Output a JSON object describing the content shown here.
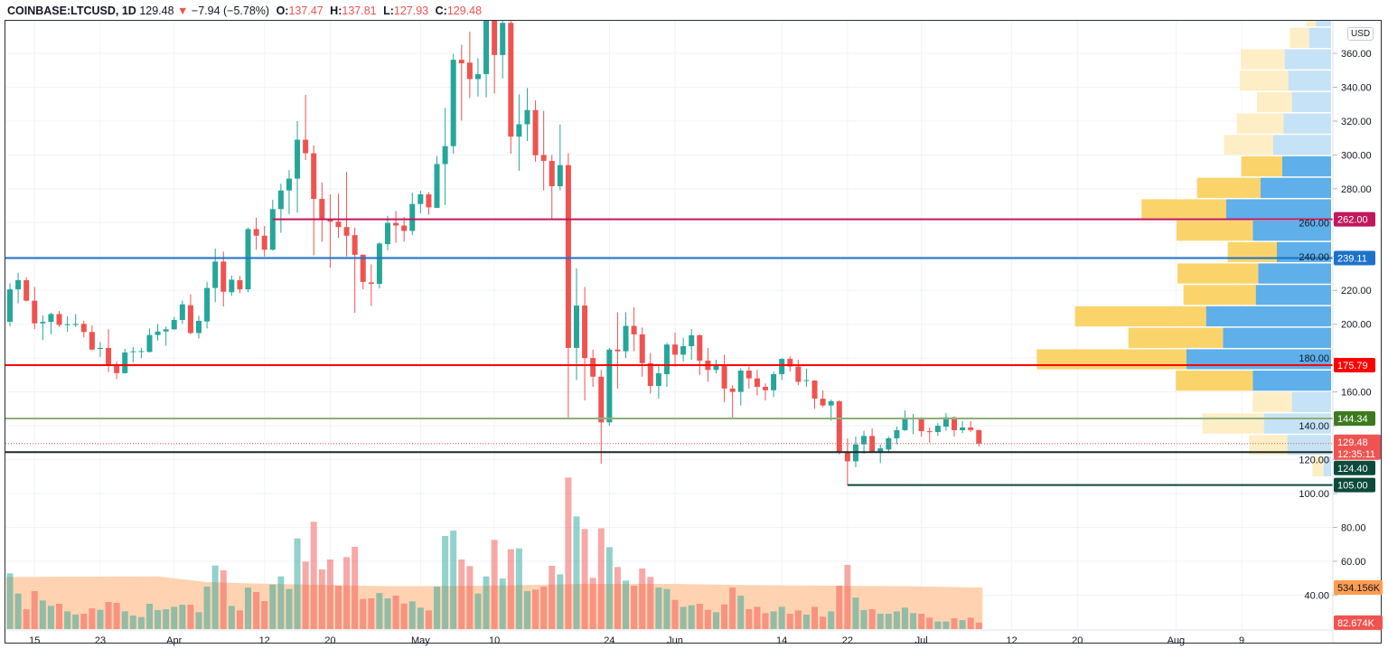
{
  "header": {
    "symbol": "COINBASE:LTCUSD, 1D",
    "last": "129.48",
    "direction_icon": "triangle-down",
    "change": "−7.94 (−5.78%)",
    "open_label": "O:",
    "open": "137.47",
    "high_label": "H:",
    "high": "137.81",
    "low_label": "L:",
    "low": "127.93",
    "close_label": "C:",
    "close": "129.48"
  },
  "currency_badge": "USD",
  "colors": {
    "up": "#26a69a",
    "down": "#ef5350",
    "profile_up": "#5eafea",
    "profile_up_faded": "#c6e2f6",
    "profile_down": "#fad46b",
    "profile_down_faded": "#fdeec6",
    "volume_ma_fill": "#ffcba4"
  },
  "chart_data": {
    "type": "candlestick",
    "title": "",
    "price_axis": {
      "ticks": [
        "360.00",
        "340.00",
        "320.00",
        "300.00",
        "280.00",
        "260.00",
        "240.00",
        "220.00",
        "200.00",
        "180.00",
        "160.00",
        "140.00",
        "120.00",
        "100.00",
        "80.00",
        "60.00",
        "40.00"
      ],
      "ylim": [
        30,
        390
      ]
    },
    "time_axis": {
      "ticks": [
        {
          "label": "15",
          "date": "Mar 15"
        },
        {
          "label": "23",
          "date": "Mar 23"
        },
        {
          "label": "Apr",
          "date": "Apr 1"
        },
        {
          "label": "12",
          "date": "Apr 12"
        },
        {
          "label": "20",
          "date": "Apr 20"
        },
        {
          "label": "May",
          "date": "May 1"
        },
        {
          "label": "10",
          "date": "May 10"
        },
        {
          "label": "24",
          "date": "May 24"
        },
        {
          "label": "Jun",
          "date": "Jun 1"
        },
        {
          "label": "14",
          "date": "Jun 14"
        },
        {
          "label": "22",
          "date": "Jun 22"
        },
        {
          "label": "Jul",
          "date": "Jul 1"
        },
        {
          "label": "12",
          "date": "Jul 12"
        },
        {
          "label": "20",
          "date": "Jul 20"
        },
        {
          "label": "Aug",
          "date": "Aug 1"
        },
        {
          "label": "9",
          "date": "Aug 9"
        }
      ]
    },
    "candle_fields": [
      "date",
      "open",
      "high",
      "low",
      "close",
      "volume_k"
    ],
    "candles": [
      [
        "Mar 12",
        201.4,
        224.2,
        198.7,
        220.6,
        716
      ],
      [
        "Mar 13",
        220.6,
        230.4,
        212.3,
        226,
        457
      ],
      [
        "Mar 14",
        226,
        227.8,
        213.5,
        213.9,
        255
      ],
      [
        "Mar 15",
        213.9,
        222,
        197.1,
        200.5,
        488
      ],
      [
        "Mar 16",
        200.5,
        205.2,
        190.7,
        201.4,
        368
      ],
      [
        "Mar 17",
        201.4,
        206.8,
        194,
        206,
        298
      ],
      [
        "Mar 18",
        206,
        207.8,
        198.4,
        199.6,
        325
      ],
      [
        "Mar 19",
        199.6,
        204.6,
        195.4,
        200,
        228
      ],
      [
        "Mar 20",
        199.6,
        206,
        198.4,
        200.2,
        186
      ],
      [
        "Mar 21",
        200.2,
        202,
        192.2,
        195.4,
        197
      ],
      [
        "Mar 22",
        195.4,
        199.3,
        184.7,
        185,
        267
      ],
      [
        "Mar 23",
        185.4,
        189.5,
        180.6,
        186,
        248
      ],
      [
        "Mar 24",
        186,
        197,
        171.7,
        175.8,
        348
      ],
      [
        "Mar 25",
        175.8,
        178,
        167.6,
        171.1,
        337
      ],
      [
        "Mar 26",
        171.1,
        185.4,
        170.8,
        183.3,
        228
      ],
      [
        "Mar 27",
        183.6,
        186.5,
        177.4,
        184,
        174
      ],
      [
        "Mar 28",
        184,
        186,
        180,
        184.1,
        155
      ],
      [
        "Mar 29",
        183.6,
        197.5,
        183.3,
        193.6,
        325
      ],
      [
        "Mar 30",
        193.6,
        200.2,
        190.4,
        195.7,
        244
      ],
      [
        "Mar 31",
        195.7,
        198.7,
        187.2,
        197,
        255
      ],
      [
        "Apr 1",
        197,
        204.3,
        196.6,
        202.5,
        286
      ],
      [
        "Apr 2",
        202.5,
        214,
        200.2,
        211.7,
        313
      ],
      [
        "Apr 3",
        211.2,
        217.6,
        194,
        194.8,
        313
      ],
      [
        "Apr 4",
        194.8,
        205,
        191.6,
        202,
        217
      ],
      [
        "Apr 5",
        201.6,
        225.1,
        197.5,
        221.4,
        546
      ],
      [
        "Apr 6",
        221.4,
        244.7,
        213,
        237,
        817
      ],
      [
        "Apr 7",
        237,
        242.9,
        210.5,
        219.2,
        755
      ],
      [
        "Apr 8",
        218.9,
        228.7,
        216.7,
        226.3,
        298
      ],
      [
        "Apr 9",
        226,
        228.5,
        218.3,
        220.6,
        240
      ],
      [
        "Apr 10",
        220.6,
        257.1,
        218.9,
        256.2,
        534
      ],
      [
        "Apr 11",
        256.2,
        263,
        244,
        252.3,
        476
      ],
      [
        "Apr 12",
        252.3,
        258,
        240,
        244,
        360
      ],
      [
        "Apr 13",
        244,
        273.5,
        243.5,
        268,
        573
      ],
      [
        "Apr 14",
        268,
        283,
        254,
        279,
        677
      ],
      [
        "Apr 15",
        279,
        291,
        265,
        286,
        515
      ],
      [
        "Apr 16",
        286,
        320,
        266,
        309,
        1165
      ],
      [
        "Apr 17",
        309,
        335.4,
        297,
        301,
        867
      ],
      [
        "Apr 18",
        301,
        305.5,
        240.7,
        274,
        1378
      ],
      [
        "Apr 19",
        274,
        283.8,
        248.7,
        261.5,
        766
      ],
      [
        "Apr 20",
        261.5,
        276.7,
        233.4,
        260.6,
        894
      ],
      [
        "Apr 21",
        260.6,
        277,
        251,
        257.4,
        557
      ],
      [
        "Apr 22",
        257.4,
        290,
        240,
        252.3,
        925
      ],
      [
        "Apr 23",
        252.6,
        257,
        206.7,
        241,
        1057
      ],
      [
        "Apr 24",
        241,
        241.4,
        220.6,
        225,
        387
      ],
      [
        "Apr 25",
        224.7,
        235.4,
        210.8,
        223.8,
        395
      ],
      [
        "Apr 26",
        223.8,
        248.5,
        221.1,
        247.7,
        464
      ],
      [
        "Apr 27",
        247.3,
        264,
        243.7,
        259.8,
        395
      ],
      [
        "Apr 28",
        259.8,
        266.9,
        248.2,
        258.3,
        430
      ],
      [
        "Apr 29",
        258.3,
        263.3,
        248.7,
        255.1,
        329
      ],
      [
        "Apr 30",
        255.1,
        277.6,
        252.6,
        271,
        356
      ],
      [
        "May 1",
        271,
        278.8,
        265.5,
        276.7,
        275
      ],
      [
        "May 2",
        276.7,
        278,
        264.7,
        269,
        240
      ],
      [
        "May 3",
        268.7,
        299.3,
        268.7,
        294.6,
        546
      ],
      [
        "May 4",
        294.6,
        327.8,
        270.4,
        305.2,
        1196
      ],
      [
        "May 5",
        305.2,
        359.8,
        300.7,
        356.2,
        1265
      ],
      [
        "May 6",
        356.2,
        365.1,
        320.3,
        354.1,
        894
      ],
      [
        "May 7",
        354.5,
        372.8,
        333.6,
        344.8,
        809
      ],
      [
        "May 8",
        344.8,
        357.1,
        334.5,
        347.7,
        457
      ],
      [
        "May 9",
        347.7,
        392,
        334,
        385,
        677
      ],
      [
        "May 10",
        385,
        395,
        336.3,
        359,
        1146
      ],
      [
        "May 11",
        359,
        395,
        345.2,
        378,
        650
      ],
      [
        "May 12",
        378,
        390,
        300.7,
        310.8,
        1026
      ],
      [
        "May 13",
        310.8,
        335.8,
        290.6,
        318.1,
        1037
      ],
      [
        "May 14",
        318.1,
        339.5,
        308.2,
        326.5,
        488
      ],
      [
        "May 15",
        326.5,
        332.2,
        295.9,
        299.8,
        507
      ],
      [
        "May 16",
        300,
        326,
        279,
        296.5,
        546
      ],
      [
        "May 17",
        296.5,
        300,
        262,
        281.5,
        813
      ],
      [
        "May 18",
        281.5,
        318,
        279,
        294,
        704
      ],
      [
        "May 19",
        294,
        301,
        145,
        186,
        1947
      ],
      [
        "May 20",
        186,
        233,
        167,
        211,
        1447
      ],
      [
        "May 21",
        211,
        222,
        155,
        180,
        1285
      ],
      [
        "May 22",
        180,
        185,
        163,
        169,
        658
      ],
      [
        "May 23",
        169,
        173,
        117.6,
        142,
        1296
      ],
      [
        "May 24",
        142,
        186,
        140,
        185,
        1053
      ],
      [
        "May 25",
        185,
        207,
        162,
        184,
        797
      ],
      [
        "May 26",
        184,
        207,
        180,
        199,
        623
      ],
      [
        "May 27",
        199,
        210,
        184,
        194,
        557
      ],
      [
        "May 28",
        194,
        198,
        169,
        177,
        778
      ],
      [
        "May 29",
        177,
        183,
        159,
        163.5,
        670
      ],
      [
        "May 30",
        163.5,
        176,
        156,
        171,
        534
      ],
      [
        "May 31",
        170.5,
        189,
        163,
        188,
        515
      ],
      [
        "Jun 1",
        188,
        195,
        175,
        182,
        375
      ],
      [
        "Jun 2",
        182,
        192,
        178,
        187,
        286
      ],
      [
        "Jun 3",
        187,
        197,
        179,
        193.5,
        306
      ],
      [
        "Jun 4",
        193.5,
        194,
        170,
        178.5,
        325
      ],
      [
        "Jun 5",
        178.5,
        186,
        166,
        173,
        248
      ],
      [
        "Jun 6",
        173,
        179,
        171,
        176,
        217
      ],
      [
        "Jun 7",
        176,
        182,
        154,
        162,
        317
      ],
      [
        "Jun 8",
        162,
        164,
        144,
        160,
        534
      ],
      [
        "Jun 9",
        160,
        174,
        152,
        172.6,
        430
      ],
      [
        "Jun 10",
        172.6,
        175,
        162,
        168,
        255
      ],
      [
        "Jun 11",
        168,
        173,
        158,
        163,
        286
      ],
      [
        "Jun 12",
        163,
        165,
        155,
        161,
        205
      ],
      [
        "Jun 13",
        161,
        172,
        157,
        170.5,
        228
      ],
      [
        "Jun 14",
        170.5,
        180,
        167,
        179.5,
        286
      ],
      [
        "Jun 15",
        179.5,
        181,
        172,
        175,
        197
      ],
      [
        "Jun 16",
        175,
        179,
        164,
        166,
        240
      ],
      [
        "Jun 17",
        166.7,
        173.7,
        163,
        167,
        186
      ],
      [
        "Jun 18",
        166.7,
        167,
        150,
        156,
        286
      ],
      [
        "Jun 19",
        156,
        161,
        151,
        152,
        159
      ],
      [
        "Jun 20",
        152,
        155.5,
        143,
        154.5,
        228
      ],
      [
        "Jun 21",
        154.5,
        155,
        123,
        124.5,
        557
      ],
      [
        "Jun 22",
        124.5,
        132.5,
        105,
        119,
        824
      ],
      [
        "Jun 23",
        119,
        133.6,
        115.5,
        129,
        406
      ],
      [
        "Jun 24",
        129,
        137,
        123.5,
        134,
        244
      ],
      [
        "Jun 25",
        134,
        138.5,
        124,
        124.5,
        255
      ],
      [
        "Jun 26",
        124.5,
        129,
        118,
        126.7,
        197
      ],
      [
        "Jun 27",
        126,
        133.6,
        124.5,
        132.6,
        197
      ],
      [
        "Jun 28",
        132.6,
        139.5,
        129,
        137.4,
        228
      ],
      [
        "Jun 29",
        137.4,
        149,
        137,
        143.8,
        275
      ],
      [
        "Jun 30",
        143.8,
        147,
        135,
        144.3,
        205
      ],
      [
        "Jul 1",
        144.3,
        145,
        133.6,
        136.8,
        197
      ],
      [
        "Jul 2",
        136.8,
        139,
        130,
        136.3,
        147
      ],
      [
        "Jul 3",
        136.3,
        141.6,
        134,
        140,
        97
      ],
      [
        "Jul 4",
        139.5,
        147.5,
        137,
        145,
        97
      ],
      [
        "Jul 5",
        145,
        145.5,
        133.6,
        137.4,
        139
      ],
      [
        "Jul 6",
        137.4,
        142.7,
        135.7,
        139,
        116
      ],
      [
        "Jul 7",
        139,
        142.7,
        136.3,
        137.47,
        147
      ],
      [
        "Jul 8",
        137.47,
        137.81,
        127.93,
        129.48,
        82.674
      ]
    ],
    "volume_ma": [
      {
        "date": "Mar 12",
        "value": 670
      },
      {
        "date": "Mar 30",
        "value": 677
      },
      {
        "date": "Apr 5",
        "value": 604
      },
      {
        "date": "Apr 13",
        "value": 580
      },
      {
        "date": "Apr 28",
        "value": 550
      },
      {
        "date": "May 10",
        "value": 557
      },
      {
        "date": "May 20",
        "value": 580
      },
      {
        "date": "Jun 1",
        "value": 580
      },
      {
        "date": "Jun 10",
        "value": 565
      },
      {
        "date": "Jun 30",
        "value": 550
      },
      {
        "date": "Jul 8",
        "value": 534.156
      }
    ],
    "volume_profile": [
      {
        "from": 375.5,
        "to": 388.2,
        "up": 50,
        "down": 32,
        "value_area": false
      },
      {
        "from": 362.8,
        "to": 375.5,
        "up": 73,
        "down": 64,
        "value_area": false
      },
      {
        "from": 350.2,
        "to": 362.8,
        "up": 154,
        "down": 146,
        "value_area": false
      },
      {
        "from": 337.5,
        "to": 350.2,
        "up": 142,
        "down": 161,
        "value_area": false
      },
      {
        "from": 324.9,
        "to": 337.5,
        "up": 130,
        "down": 116,
        "value_area": false
      },
      {
        "from": 312.2,
        "to": 324.9,
        "up": 158,
        "down": 155,
        "value_area": false
      },
      {
        "from": 299.6,
        "to": 312.2,
        "up": 192,
        "down": 163,
        "value_area": false
      },
      {
        "from": 286.9,
        "to": 299.6,
        "up": 162,
        "down": 136,
        "value_area": true
      },
      {
        "from": 274.2,
        "to": 286.9,
        "up": 234,
        "down": 211,
        "value_area": true
      },
      {
        "from": 261.6,
        "to": 274.2,
        "up": 348,
        "down": 281,
        "value_area": true
      },
      {
        "from": 248.9,
        "to": 261.6,
        "up": 260,
        "down": 253,
        "value_area": true
      },
      {
        "from": 236.3,
        "to": 248.9,
        "up": 180,
        "down": 163,
        "value_area": true
      },
      {
        "from": 223.6,
        "to": 236.3,
        "up": 242,
        "down": 268,
        "value_area": true
      },
      {
        "from": 211.0,
        "to": 223.6,
        "up": 250,
        "down": 240,
        "value_area": true
      },
      {
        "from": 198.3,
        "to": 211.0,
        "up": 415,
        "down": 435,
        "value_area": true
      },
      {
        "from": 185.6,
        "to": 198.3,
        "up": 359,
        "down": 314,
        "value_area": true
      },
      {
        "from": 173.0,
        "to": 185.6,
        "up": 480,
        "down": 497,
        "value_area": true
      },
      {
        "from": 160.3,
        "to": 173.0,
        "up": 260,
        "down": 255,
        "value_area": true
      },
      {
        "from": 147.7,
        "to": 160.3,
        "up": 130,
        "down": 130,
        "value_area": false
      },
      {
        "from": 135.0,
        "to": 147.7,
        "up": 223,
        "down": 204,
        "value_area": false
      },
      {
        "from": 122.4,
        "to": 135.0,
        "up": 145,
        "down": 127,
        "value_area": false
      },
      {
        "from": 109.7,
        "to": 122.4,
        "up": 25,
        "down": 37,
        "value_area": false
      }
    ],
    "levels": [
      {
        "price": 262.0,
        "label": "262.00",
        "color": "#c2185b",
        "from": "Apr 13"
      },
      {
        "price": 239.11,
        "label": "239.11",
        "color": "#1e72c8",
        "from": null
      },
      {
        "price": 175.79,
        "label": "175.79",
        "color": "#ff0000",
        "from": null
      },
      {
        "price": 144.34,
        "label": "144.34",
        "color": "#3d7a1e",
        "line_color": "#8fae7a",
        "from": null
      },
      {
        "price": 124.4,
        "label": "124.40",
        "color": "#0c4a3b",
        "line_color": "#1b2a26",
        "from": null
      },
      {
        "price": 105.0,
        "label": "105.00",
        "color": "#0c4a3b",
        "from": "Jun 22"
      }
    ],
    "last_price": {
      "price": 129.48,
      "label": "129.48",
      "countdown": "12:35:11",
      "color": "#ef5350"
    },
    "volume_tags": [
      {
        "value": 534.156,
        "label": "534.156K",
        "color": "#ff9c50"
      },
      {
        "value": 82.674,
        "label": "82.674K",
        "color": "#ef5350"
      }
    ]
  }
}
